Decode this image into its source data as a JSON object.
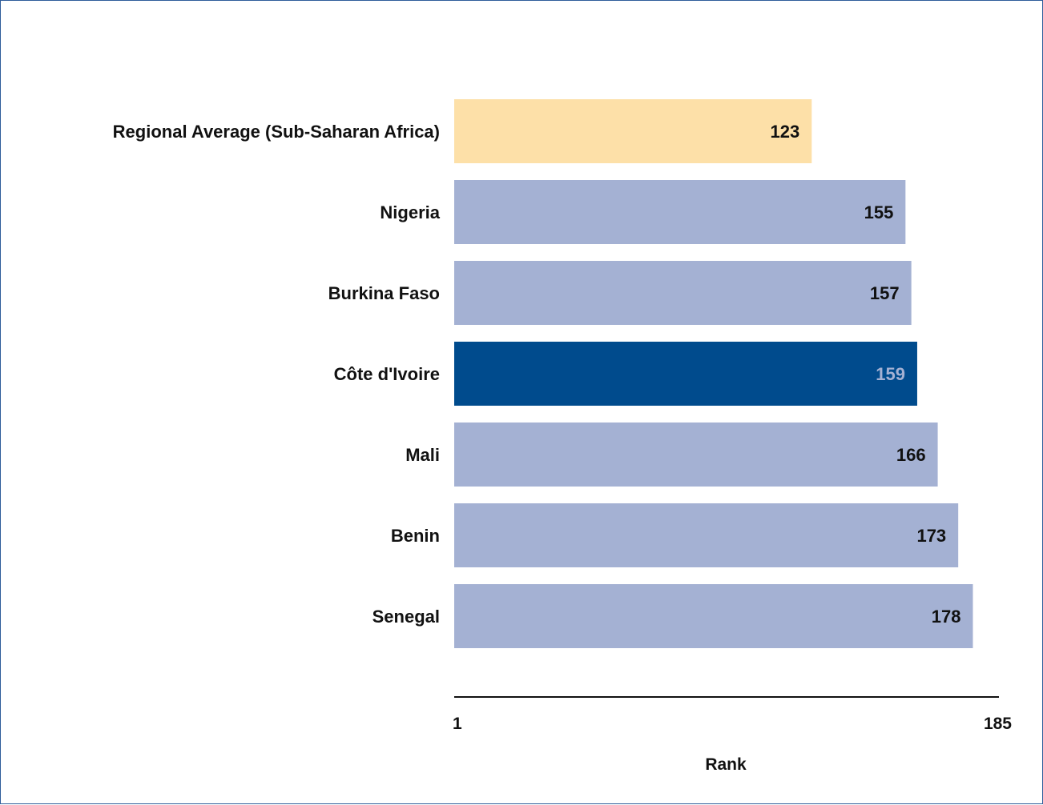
{
  "chart_data": {
    "type": "bar",
    "orientation": "horizontal",
    "categories": [
      "Regional Average (Sub-Saharan Africa)",
      "Nigeria",
      "Burkina Faso",
      "Côte d'Ivoire",
      "Mali",
      "Benin",
      "Senegal"
    ],
    "values": [
      123,
      155,
      157,
      159,
      166,
      173,
      178
    ],
    "value_labels": [
      "123",
      "155",
      "157",
      "159",
      "166",
      "173",
      "178"
    ],
    "bar_colors": [
      "#fde0a8",
      "#a4b1d3",
      "#a4b1d3",
      "#004b8d",
      "#a4b1d3",
      "#a4b1d3",
      "#a4b1d3"
    ],
    "value_label_colors": [
      "#111111",
      "#111111",
      "#111111",
      "#a4b1d3",
      "#111111",
      "#111111",
      "#111111"
    ],
    "xlim": [
      1,
      185
    ],
    "x_ticks": [
      "1",
      "185"
    ],
    "xlabel": "Rank",
    "ylabel": "",
    "title": "",
    "grid": false,
    "legend": "none"
  }
}
